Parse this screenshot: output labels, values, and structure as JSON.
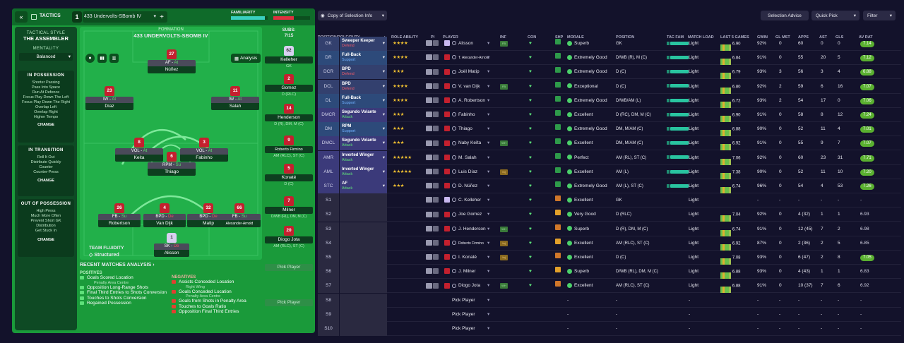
{
  "header": {
    "tactics_label": "TACTICS",
    "tactic_slot": "1",
    "tactic_name": "433 Undervolts-SBomb IV",
    "add_label": "+",
    "familiarity_label": "FAMILIARITY",
    "intensity_label": "INTENSITY"
  },
  "style": {
    "heading": "TACTICAL STYLE",
    "name": "THE ASSEMBLER",
    "mentality_label": "MENTALITY",
    "mentality_value": "Balanced",
    "in_possession": {
      "title": "IN POSSESSION",
      "lines": [
        "Shorter Passing",
        "Pass Into Space",
        "Run At Defence",
        "Focus Play Down The Left",
        "Focus Play Down The Right",
        "Overlap Left",
        "Overlap Right",
        "Higher Tempo"
      ],
      "change": "CHANGE"
    },
    "in_transition": {
      "title": "IN TRANSITION",
      "lines": [
        "Roll It Out",
        "Distribute Quickly",
        "Counter",
        "Counter-Press"
      ],
      "change": "CHANGE"
    },
    "out_of_possession": {
      "title": "OUT OF POSSESSION",
      "lines": [
        "High Press",
        "Much More Often",
        "Prevent Short GK",
        "Distribution",
        "Get Stuck In"
      ],
      "change": "CHANGE"
    }
  },
  "formation": {
    "label": "FORMATION",
    "name": "433 UNDERVOLTS-SBOMB IV",
    "analysis_label": "Analysis",
    "team_fluidity_label": "TEAM FLUIDITY",
    "team_fluidity_value": "Structured",
    "players": [
      {
        "num": "27",
        "role_a": "AF",
        "role_b": "At",
        "name": "Núñez"
      },
      {
        "num": "23",
        "role_a": "IW",
        "role_b": "At",
        "name": "Díaz"
      },
      {
        "num": "11",
        "role_a": "IW",
        "role_b": "At",
        "name": "Salah"
      },
      {
        "num": "8",
        "role_a": "VOL",
        "role_b": "At",
        "name": "Keita"
      },
      {
        "num": "6",
        "role_a": "RPM",
        "role_b": "Su",
        "name": "Thiago"
      },
      {
        "num": "3",
        "role_a": "VOL",
        "role_b": "At",
        "name": "Fabinho"
      },
      {
        "num": "26",
        "role_a": "FB",
        "role_b": "Su",
        "name": "Robertson"
      },
      {
        "num": "4",
        "role_a": "BPD",
        "role_b": "De",
        "name": "Van Dijk"
      },
      {
        "num": "32",
        "role_a": "BPD",
        "role_b": "De",
        "name": "Matip"
      },
      {
        "num": "66",
        "role_a": "FB",
        "role_b": "Su",
        "name": "Alexander-Arnold"
      },
      {
        "num": "1",
        "role_a": "SK",
        "role_b": "De",
        "name": "Alisson"
      }
    ]
  },
  "subs": {
    "label": "SUBS:",
    "count": "7/15",
    "list": [
      {
        "num": "62",
        "name": "Kelleher",
        "pos": "GK"
      },
      {
        "num": "2",
        "name": "Gomez",
        "pos": "D (RLC)"
      },
      {
        "num": "14",
        "name": "Henderson",
        "pos": "D (R), DM, M (C)"
      },
      {
        "num": "9",
        "name": "Roberto Firmino",
        "pos": "AM (RLC), ST (C)"
      },
      {
        "num": "5",
        "name": "Konaté",
        "pos": "D (C)"
      },
      {
        "num": "7",
        "name": "Milner",
        "pos": "D/WB (RL), DM, M (C)"
      },
      {
        "num": "20",
        "name": "Diogo Jota",
        "pos": "AM (RLC), ST (C)"
      },
      {
        "num": "",
        "name": "Pick Player",
        "pos": ""
      },
      {
        "num": "",
        "name": "Pick Player",
        "pos": ""
      }
    ]
  },
  "analysis": {
    "title": "RECENT MATCHES ANALYSIS",
    "positives_label": "POSITIVES",
    "negatives_label": "NEGATIVES",
    "positives": [
      {
        "text": "Goals Scored Location",
        "sub": "Penalty Area Centre"
      },
      {
        "text": "Opposition Long-Range Shots",
        "sub": ""
      },
      {
        "text": "Final Third Entries to Shots Conversion",
        "sub": ""
      },
      {
        "text": "Touches to Shots Conversion",
        "sub": ""
      },
      {
        "text": "Regained Possession",
        "sub": ""
      }
    ],
    "negatives": [
      {
        "text": "Assists Conceded Location",
        "sub": "Right Wing"
      },
      {
        "text": "Goals Conceded Location",
        "sub": "Penalty Area Centre"
      },
      {
        "text": "Goals from Shots in Penalty Area",
        "sub": ""
      },
      {
        "text": "Touches to Goals Ratio",
        "sub": ""
      },
      {
        "text": "Opposition Final Third Entries",
        "sub": ""
      }
    ]
  },
  "toolbar": {
    "view_label": "Copy of Selection Info",
    "selection_advice": "Selection Advice",
    "quick_pick": "Quick Pick",
    "filter": "Filter"
  },
  "columns": [
    "POSITION/ROLE/DUTY",
    "ROLE ABILITY",
    "PI",
    "PLAYER",
    "INF",
    "CON",
    "SHP",
    "MORALE",
    "POSITION",
    "TAC FAM",
    "MATCH LOAD",
    "LAST 5 GAMES",
    "GWIN",
    "GL MST",
    "APPS",
    "AST",
    "GLS",
    "AV RAT"
  ],
  "rows": [
    {
      "slot": "GK",
      "role": "Sweeper Keeper",
      "duty": "Defend",
      "stars": "★★★★",
      "player": "Alisson",
      "gk": true,
      "inf": "FB",
      "morale": "Superb",
      "position": "GK",
      "load": "Light",
      "last5": "6.90",
      "gwin": "92%",
      "glmst": "0",
      "apps": "60",
      "ast": "0",
      "gls": "0",
      "avr": "7.14"
    },
    {
      "slot": "DR",
      "role": "Full-Back",
      "duty": "Support",
      "stars": "★★★★",
      "player": "T. Alexander-Arnold",
      "gk": false,
      "inf": "",
      "morale": "Extremely Good",
      "position": "D/WB (R), M (C)",
      "load": "Light",
      "last5": "6.84",
      "gwin": "91%",
      "glmst": "0",
      "apps": "55",
      "ast": "20",
      "gls": "5",
      "avr": "7.12"
    },
    {
      "slot": "DCR",
      "role": "BPD",
      "duty": "Defend",
      "stars": "★★★",
      "player": "Joël Matip",
      "gk": false,
      "inf": "",
      "morale": "Extremely Good",
      "position": "D (C)",
      "load": "Light",
      "last5": "6.79",
      "gwin": "93%",
      "glmst": "3",
      "apps": "56",
      "ast": "3",
      "gls": "4",
      "avr": "6.88"
    },
    {
      "slot": "DCL",
      "role": "BPD",
      "duty": "Defend",
      "stars": "★★★★",
      "player": "V. van Dijk",
      "gk": false,
      "inf": "FB",
      "morale": "Exceptional",
      "position": "D (C)",
      "load": "Light",
      "last5": "6.80",
      "gwin": "92%",
      "glmst": "2",
      "apps": "59",
      "ast": "6",
      "gls": "16",
      "avr": "7.07"
    },
    {
      "slot": "DL",
      "role": "Full-Back",
      "duty": "Support",
      "stars": "★★★★",
      "player": "A. Robertson",
      "gk": false,
      "inf": "",
      "morale": "Extremely Good",
      "position": "D/WB/AM (L)",
      "load": "Light",
      "last5": "6.72",
      "gwin": "93%",
      "glmst": "2",
      "apps": "54",
      "ast": "17",
      "gls": "0",
      "avr": "7.06"
    },
    {
      "slot": "DMCR",
      "role": "Segundo Volante",
      "duty": "Attack",
      "stars": "★★★",
      "player": "Fabinho",
      "gk": false,
      "inf": "",
      "morale": "Excellent",
      "position": "D (RC), DM, M (C)",
      "load": "Light",
      "last5": "6.90",
      "gwin": "91%",
      "glmst": "0",
      "apps": "58",
      "ast": "8",
      "gls": "12",
      "avr": "7.24"
    },
    {
      "slot": "DM",
      "role": "RPM",
      "duty": "Support",
      "stars": "★★★",
      "player": "Thiago",
      "gk": false,
      "inf": "",
      "morale": "Extremely Good",
      "position": "DM, M/AM (C)",
      "load": "Light",
      "last5": "6.88",
      "gwin": "90%",
      "glmst": "0",
      "apps": "52",
      "ast": "11",
      "gls": "4",
      "avr": "7.01"
    },
    {
      "slot": "DMCL",
      "role": "Segundo Volante",
      "duty": "Attack",
      "stars": "★★★",
      "player": "Naby Keïta",
      "gk": false,
      "inf": "WH",
      "morale": "Excellent",
      "position": "DM, M/AM (C)",
      "load": "Light",
      "last5": "6.92",
      "gwin": "91%",
      "glmst": "0",
      "apps": "55",
      "ast": "9",
      "gls": "7",
      "avr": "7.07"
    },
    {
      "slot": "AMR",
      "role": "Inverted Winger",
      "duty": "Attack",
      "stars": "★★★★★",
      "player": "M. Salah",
      "gk": false,
      "inf": "",
      "morale": "Perfect",
      "position": "AM (RL), ST (C)",
      "load": "Light",
      "last5": "7.06",
      "gwin": "92%",
      "glmst": "0",
      "apps": "60",
      "ast": "23",
      "gls": "31",
      "avr": "7.71"
    },
    {
      "slot": "AML",
      "role": "Inverted Winger",
      "duty": "Attack",
      "stars": "★★★★★",
      "player": "Luis Díaz",
      "gk": false,
      "inf": "Inj",
      "morale": "Excellent",
      "position": "AM (L)",
      "load": "Light",
      "last5": "7.38",
      "gwin": "90%",
      "glmst": "0",
      "apps": "52",
      "ast": "11",
      "gls": "10",
      "avr": "7.20"
    },
    {
      "slot": "STC",
      "role": "AF",
      "duty": "Attack",
      "stars": "★★★",
      "player": "D. Núñez",
      "gk": false,
      "inf": "",
      "morale": "Extremely Good",
      "position": "AM (L), ST (C)",
      "load": "Light",
      "last5": "6.74",
      "gwin": "96%",
      "glmst": "0",
      "apps": "54",
      "ast": "4",
      "gls": "53",
      "avr": "7.26"
    },
    {
      "slot": "S1",
      "role": "",
      "duty": "",
      "stars": "",
      "player": "C. Kelleher",
      "gk": true,
      "inf": "",
      "morale": "Excellent",
      "position": "GK",
      "load": "Light",
      "last5": "",
      "gwin": "-",
      "glmst": "-",
      "apps": "-",
      "ast": "-",
      "gls": "-",
      "avr": "-"
    },
    {
      "slot": "S2",
      "role": "",
      "duty": "",
      "stars": "",
      "player": "Joe Gomez",
      "gk": false,
      "inf": "",
      "morale": "Very Good",
      "position": "D (RLC)",
      "load": "Light",
      "last5": "7.04",
      "gwin": "92%",
      "glmst": "0",
      "apps": "4 (32)",
      "ast": "1",
      "gls": "1",
      "avr": "6.93"
    },
    {
      "slot": "S3",
      "role": "",
      "duty": "",
      "stars": "",
      "player": "J. Henderson",
      "gk": false,
      "inf": "WH",
      "morale": "Superb",
      "position": "D (R), DM, M (C)",
      "load": "Light",
      "last5": "6.74",
      "gwin": "91%",
      "glmst": "0",
      "apps": "12 (45)",
      "ast": "7",
      "gls": "2",
      "avr": "6.98"
    },
    {
      "slot": "S4",
      "role": "",
      "duty": "",
      "stars": "",
      "player": "Roberto Firmino",
      "gk": false,
      "inf": "Inj",
      "morale": "Excellent",
      "position": "AM (RLC), ST (C)",
      "load": "Light",
      "last5": "6.92",
      "gwin": "87%",
      "glmst": "0",
      "apps": "2 (36)",
      "ast": "2",
      "gls": "5",
      "avr": "6.85"
    },
    {
      "slot": "S5",
      "role": "",
      "duty": "",
      "stars": "",
      "player": "I. Konaté",
      "gk": false,
      "inf": "Inj",
      "morale": "Excellent",
      "position": "D (C)",
      "load": "Light",
      "last5": "7.08",
      "gwin": "93%",
      "glmst": "0",
      "apps": "6 (47)",
      "ast": "2",
      "gls": "8",
      "avr": "7.05"
    },
    {
      "slot": "S6",
      "role": "",
      "duty": "",
      "stars": "",
      "player": "J. Milner",
      "gk": false,
      "inf": "",
      "morale": "Superb",
      "position": "D/WB (RL), DM, M (C)",
      "load": "Light",
      "last5": "6.88",
      "gwin": "93%",
      "glmst": "0",
      "apps": "4 (43)",
      "ast": "1",
      "gls": "1",
      "avr": "6.83"
    },
    {
      "slot": "S7",
      "role": "",
      "duty": "",
      "stars": "",
      "player": "Diogo Jota",
      "gk": false,
      "inf": "WH",
      "morale": "Excellent",
      "position": "AM (RLC), ST (C)",
      "load": "Light",
      "last5": "6.88",
      "gwin": "91%",
      "glmst": "0",
      "apps": "10 (37)",
      "ast": "7",
      "gls": "6",
      "avr": "6.92"
    },
    {
      "slot": "S8",
      "role": "",
      "duty": "",
      "stars": "",
      "player": "Pick Player",
      "gk": false,
      "pick": true,
      "inf": "",
      "morale": "-",
      "position": "-",
      "load": "-",
      "last5": "",
      "gwin": "-",
      "glmst": "-",
      "apps": "-",
      "ast": "-",
      "gls": "-",
      "avr": "-"
    },
    {
      "slot": "S9",
      "role": "",
      "duty": "",
      "stars": "",
      "player": "Pick Player",
      "gk": false,
      "pick": true,
      "inf": "",
      "morale": "-",
      "position": "-",
      "load": "-",
      "last5": "",
      "gwin": "-",
      "glmst": "-",
      "apps": "-",
      "ast": "-",
      "gls": "-",
      "avr": "-"
    },
    {
      "slot": "S10",
      "role": "",
      "duty": "",
      "stars": "",
      "player": "Pick Player",
      "gk": false,
      "pick": true,
      "inf": "",
      "morale": "-",
      "position": "-",
      "load": "-",
      "last5": "",
      "gwin": "-",
      "glmst": "-",
      "apps": "-",
      "ast": "-",
      "gls": "-",
      "avr": "-"
    }
  ],
  "colors": {
    "pitch": "#22b04a",
    "panel": "#1a9a3a",
    "attack": "#60e070",
    "defend": "#f05060",
    "bg": "#13122b"
  }
}
